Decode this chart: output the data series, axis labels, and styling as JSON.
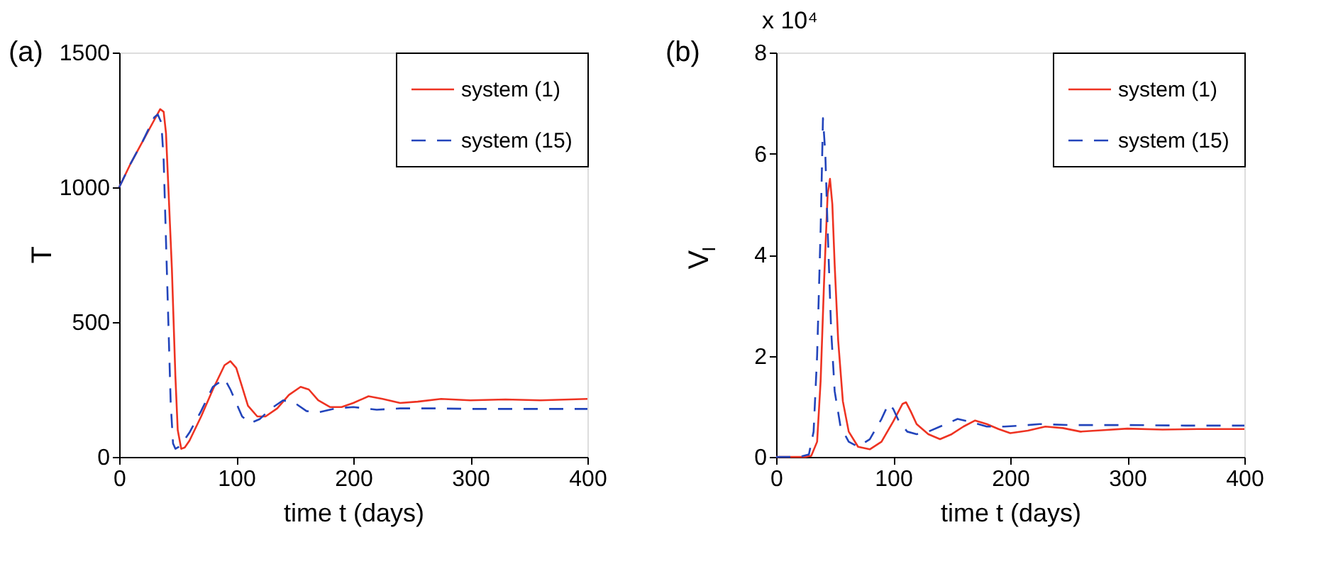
{
  "chart_data": [
    {
      "type": "line",
      "annotations": [
        "(a)"
      ],
      "xlabel": "time t (days)",
      "ylabel": "T",
      "xlim": [
        0,
        400
      ],
      "xticks": [
        0,
        100,
        200,
        300,
        400
      ],
      "ylim": [
        0,
        1500
      ],
      "yticks": [
        0,
        500,
        1000,
        1500
      ],
      "grid": false,
      "legend": "top right",
      "marker": "none",
      "series": [
        {
          "name": "system (1)",
          "color": "#ee3322",
          "line_style": "solid",
          "x": [
            0,
            10,
            20,
            30,
            35,
            38,
            40,
            42,
            45,
            48,
            50,
            53,
            56,
            60,
            70,
            80,
            90,
            95,
            100,
            105,
            110,
            118,
            125,
            135,
            145,
            155,
            162,
            170,
            180,
            190,
            200,
            213,
            225,
            240,
            255,
            275,
            300,
            330,
            360,
            400
          ],
          "values": [
            1000,
            1090,
            1170,
            1250,
            1290,
            1280,
            1200,
            1000,
            700,
            300,
            100,
            30,
            35,
            60,
            150,
            250,
            340,
            355,
            330,
            260,
            190,
            150,
            150,
            180,
            230,
            260,
            250,
            210,
            185,
            185,
            200,
            225,
            215,
            200,
            205,
            215,
            210,
            213,
            210,
            215
          ]
        },
        {
          "name": "system (15)",
          "color": "#2244bb",
          "line_style": "dashed",
          "x": [
            0,
            10,
            20,
            30,
            33,
            36,
            38,
            40,
            42,
            44,
            46,
            48,
            52,
            60,
            70,
            80,
            90,
            95,
            100,
            105,
            112,
            120,
            130,
            140,
            150,
            160,
            170,
            185,
            200,
            220,
            240,
            270,
            300,
            350,
            400
          ],
          "values": [
            1000,
            1090,
            1170,
            1260,
            1270,
            1240,
            1100,
            800,
            500,
            200,
            50,
            30,
            40,
            90,
            170,
            260,
            290,
            250,
            200,
            150,
            125,
            140,
            180,
            210,
            200,
            170,
            165,
            180,
            185,
            175,
            180,
            180,
            178,
            178,
            178
          ]
        }
      ]
    },
    {
      "type": "line",
      "annotations": [
        "(b)",
        "x 10⁴"
      ],
      "xlabel": "time t (days)",
      "ylabel": "V$_{I}$",
      "xlim": [
        0,
        400
      ],
      "xticks": [
        0,
        100,
        200,
        300,
        400
      ],
      "ylim": [
        0,
        8
      ],
      "yticks": [
        0,
        2,
        4,
        6,
        8
      ],
      "grid": false,
      "legend": "top right",
      "marker": "none",
      "series": [
        {
          "name": "system (1)",
          "color": "#ee3322",
          "line_style": "solid",
          "x": [
            0,
            25,
            30,
            35,
            38,
            41,
            44,
            46,
            48,
            50,
            53,
            57,
            62,
            70,
            80,
            90,
            100,
            108,
            111,
            115,
            120,
            130,
            140,
            150,
            160,
            170,
            180,
            190,
            200,
            215,
            230,
            245,
            260,
            280,
            300,
            330,
            360,
            400
          ],
          "values": [
            0,
            0,
            0.02,
            0.3,
            1.5,
            3.5,
            5.2,
            5.5,
            5.0,
            3.8,
            2.3,
            1.1,
            0.5,
            0.2,
            0.15,
            0.3,
            0.7,
            1.05,
            1.08,
            0.9,
            0.65,
            0.45,
            0.35,
            0.45,
            0.6,
            0.72,
            0.65,
            0.55,
            0.47,
            0.52,
            0.6,
            0.57,
            0.5,
            0.53,
            0.56,
            0.54,
            0.55,
            0.55
          ]
        },
        {
          "name": "system (15)",
          "color": "#2244bb",
          "line_style": "dashed",
          "x": [
            0,
            20,
            28,
            32,
            35,
            38,
            40,
            42,
            44,
            47,
            50,
            55,
            62,
            70,
            80,
            90,
            96,
            100,
            105,
            112,
            120,
            130,
            140,
            155,
            165,
            180,
            195,
            210,
            225,
            250,
            300,
            350,
            400
          ],
          "values": [
            0,
            0,
            0.05,
            0.5,
            2,
            4.5,
            6.7,
            6.0,
            4.5,
            2.5,
            1.3,
            0.6,
            0.3,
            0.2,
            0.35,
            0.75,
            1.05,
            0.95,
            0.7,
            0.5,
            0.45,
            0.5,
            0.6,
            0.75,
            0.7,
            0.6,
            0.6,
            0.62,
            0.65,
            0.63,
            0.63,
            0.62,
            0.62
          ]
        }
      ]
    }
  ]
}
